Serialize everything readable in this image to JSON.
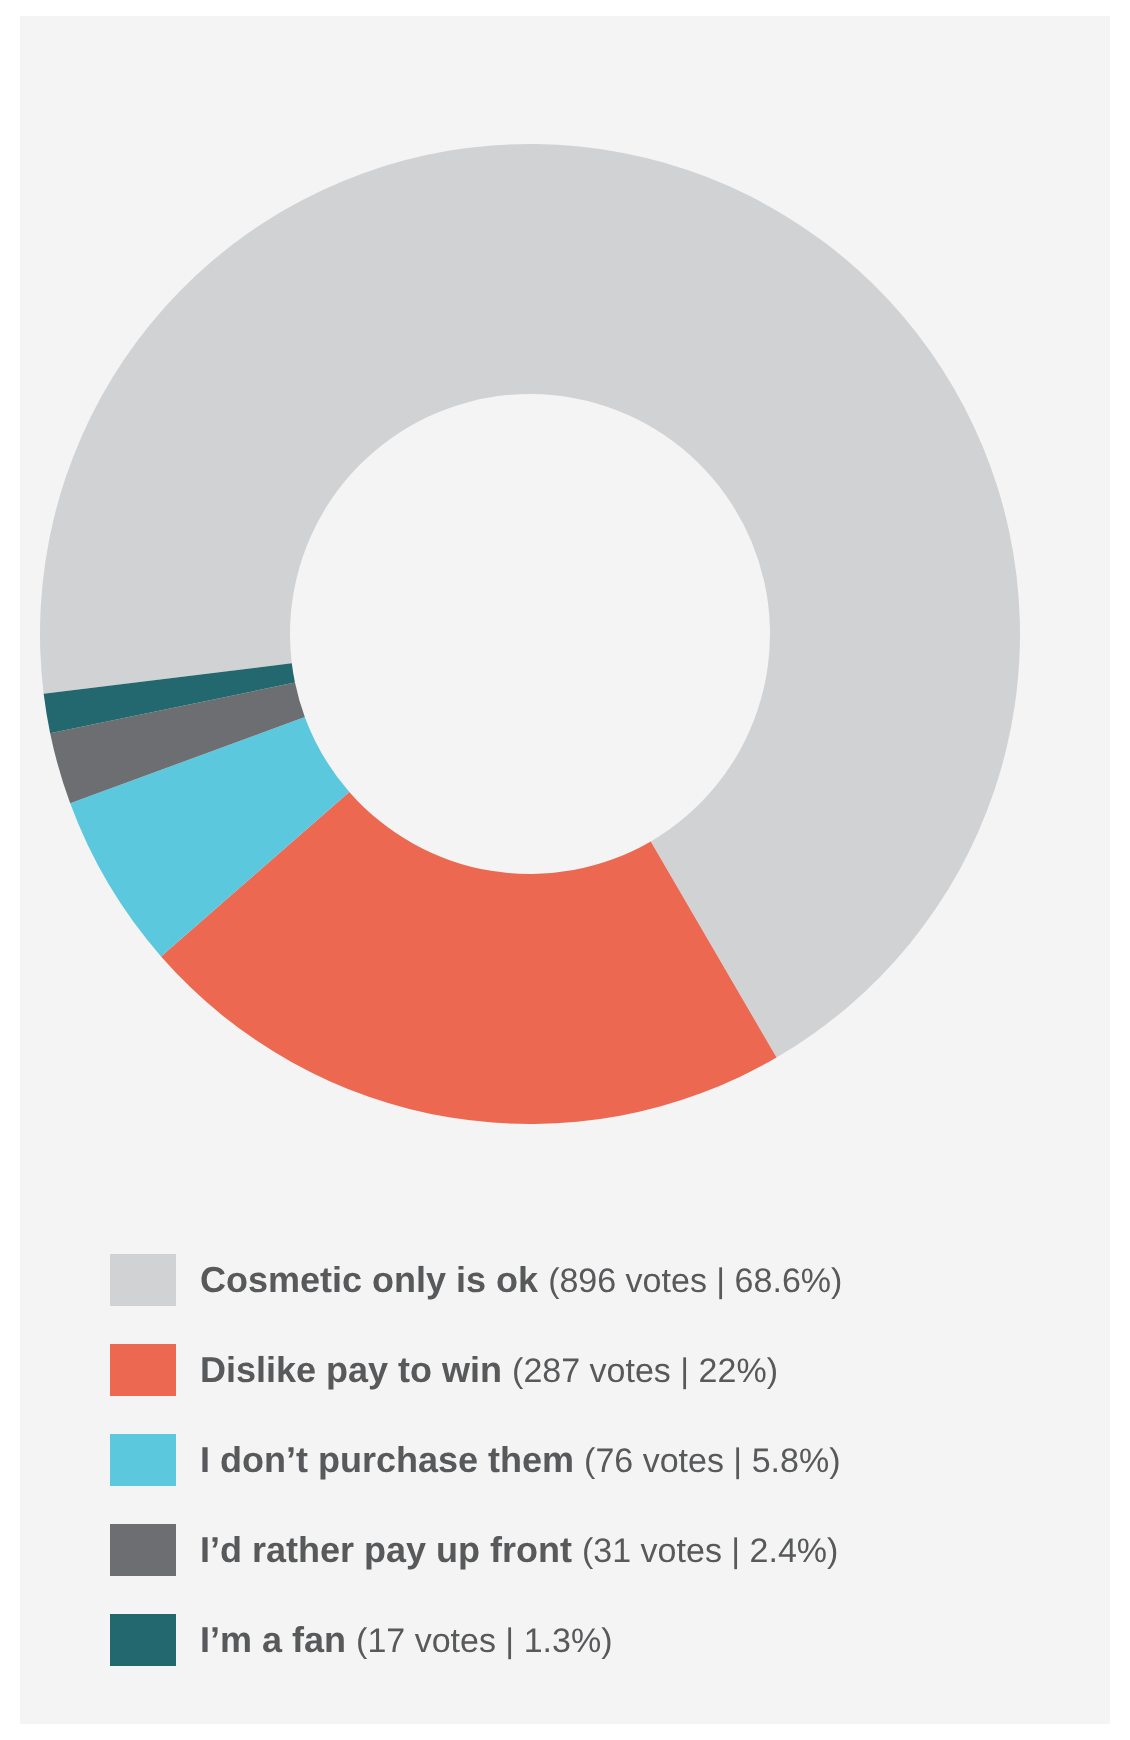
{
  "chart_data": {
    "type": "donut",
    "categories": [
      "Cosmetic only is ok",
      "Dislike pay to win",
      "I don’t purchase them",
      "I’d rather pay up front",
      "I’m a fan"
    ],
    "values": [
      896,
      287,
      76,
      31,
      17
    ],
    "colors": [
      "#d1d2d4",
      "#ec6851",
      "#5bc8de",
      "#6d6e71",
      "#23686e"
    ],
    "value_labels": [
      "(896 votes | 68.6%)",
      "(287 votes | 22%)",
      "(76 votes | 5.8%)",
      "(31 votes | 2.4%)",
      "(17 votes | 1.3%)"
    ],
    "legend": "bottom"
  }
}
